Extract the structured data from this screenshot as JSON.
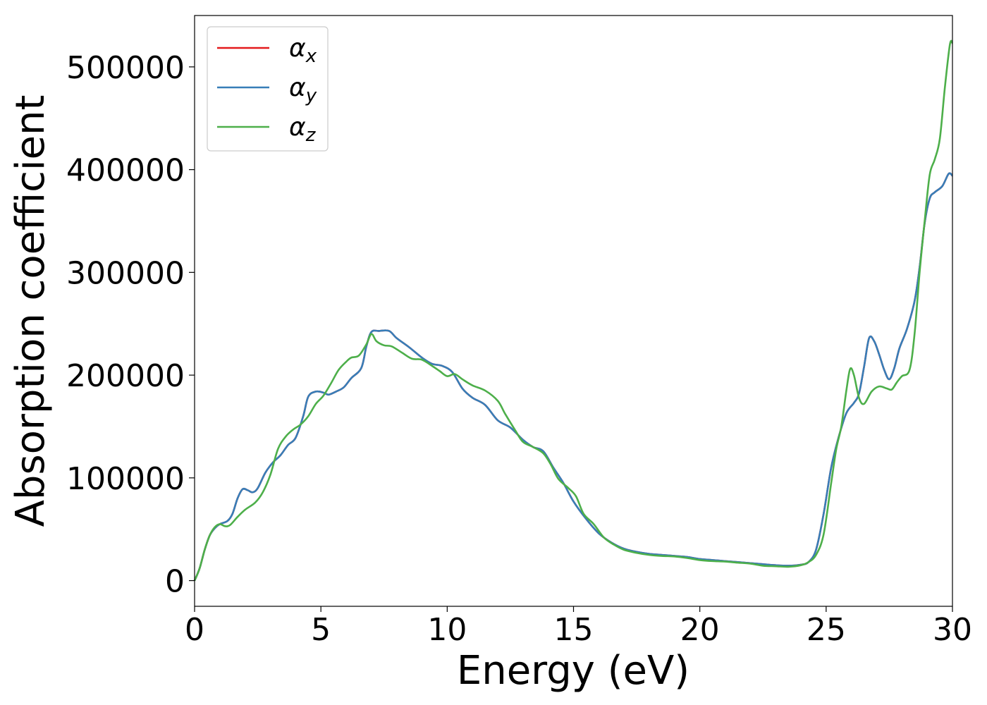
{
  "chart_data": {
    "type": "line",
    "title": "",
    "xlabel": "Energy (eV)",
    "ylabel": "Absorption coefficient",
    "xlim": [
      0,
      30
    ],
    "ylim": [
      -25000,
      550000
    ],
    "xticks": [
      0,
      5,
      10,
      15,
      20,
      25,
      30
    ],
    "xtick_labels": [
      "0",
      "5",
      "10",
      "15",
      "20",
      "25",
      "30"
    ],
    "yticks": [
      0,
      100000,
      200000,
      300000,
      400000,
      500000
    ],
    "ytick_labels": [
      "0",
      "100000",
      "200000",
      "300000",
      "400000",
      "500000"
    ],
    "grid": false,
    "legend_position": "top-left",
    "series": [
      {
        "name": "α",
        "subscript": "x",
        "color": "#e41a1c",
        "points": [
          [
            0,
            0
          ],
          [
            0.2,
            12000
          ],
          [
            0.4,
            30000
          ],
          [
            0.6,
            44000
          ],
          [
            0.8,
            51000
          ],
          [
            1.0,
            55000
          ],
          [
            1.3,
            58000
          ],
          [
            1.5,
            65000
          ],
          [
            1.7,
            80000
          ],
          [
            1.9,
            89000
          ],
          [
            2.1,
            88000
          ],
          [
            2.3,
            86000
          ],
          [
            2.5,
            90000
          ],
          [
            2.8,
            105000
          ],
          [
            3.1,
            115000
          ],
          [
            3.4,
            122000
          ],
          [
            3.7,
            132000
          ],
          [
            4.0,
            139000
          ],
          [
            4.3,
            160000
          ],
          [
            4.5,
            179000
          ],
          [
            4.8,
            184000
          ],
          [
            5.1,
            183000
          ],
          [
            5.3,
            181000
          ],
          [
            5.6,
            184000
          ],
          [
            5.9,
            188000
          ],
          [
            6.2,
            197000
          ],
          [
            6.6,
            207000
          ],
          [
            6.8,
            228000
          ],
          [
            7.0,
            242000
          ],
          [
            7.3,
            243000
          ],
          [
            7.7,
            243000
          ],
          [
            8.0,
            236000
          ],
          [
            8.5,
            227000
          ],
          [
            9.0,
            217000
          ],
          [
            9.4,
            211000
          ],
          [
            9.8,
            209000
          ],
          [
            10.2,
            203000
          ],
          [
            10.6,
            187000
          ],
          [
            11.0,
            178000
          ],
          [
            11.5,
            171000
          ],
          [
            12.0,
            156000
          ],
          [
            12.5,
            149000
          ],
          [
            13.0,
            137000
          ],
          [
            13.4,
            130000
          ],
          [
            13.8,
            126000
          ],
          [
            14.2,
            110000
          ],
          [
            14.6,
            95000
          ],
          [
            15.0,
            77000
          ],
          [
            15.5,
            60000
          ],
          [
            16.0,
            46000
          ],
          [
            16.5,
            37000
          ],
          [
            17.0,
            31000
          ],
          [
            17.5,
            28000
          ],
          [
            18.0,
            26000
          ],
          [
            18.5,
            25000
          ],
          [
            19.0,
            24000
          ],
          [
            19.5,
            23000
          ],
          [
            20.0,
            21000
          ],
          [
            20.5,
            20000
          ],
          [
            21.0,
            19000
          ],
          [
            21.5,
            18000
          ],
          [
            22.0,
            17000
          ],
          [
            22.5,
            16000
          ],
          [
            23.0,
            15000
          ],
          [
            23.5,
            14500
          ],
          [
            24.0,
            15500
          ],
          [
            24.3,
            18000
          ],
          [
            24.6,
            30000
          ],
          [
            24.9,
            65000
          ],
          [
            25.2,
            110000
          ],
          [
            25.5,
            140000
          ],
          [
            25.8,
            163000
          ],
          [
            26.1,
            173000
          ],
          [
            26.3,
            182000
          ],
          [
            26.5,
            208000
          ],
          [
            26.7,
            236000
          ],
          [
            26.9,
            233000
          ],
          [
            27.1,
            220000
          ],
          [
            27.3,
            205000
          ],
          [
            27.5,
            196000
          ],
          [
            27.7,
            207000
          ],
          [
            27.9,
            226000
          ],
          [
            28.2,
            245000
          ],
          [
            28.5,
            272000
          ],
          [
            28.7,
            305000
          ],
          [
            28.9,
            348000
          ],
          [
            29.1,
            372000
          ],
          [
            29.3,
            378000
          ],
          [
            29.6,
            384000
          ],
          [
            29.85,
            396000
          ],
          [
            30,
            394000
          ]
        ]
      },
      {
        "name": "α",
        "subscript": "y",
        "color": "#377eb8",
        "points": [
          [
            0,
            0
          ],
          [
            0.2,
            12000
          ],
          [
            0.4,
            30000
          ],
          [
            0.6,
            44000
          ],
          [
            0.8,
            51000
          ],
          [
            1.0,
            55000
          ],
          [
            1.3,
            58000
          ],
          [
            1.5,
            65000
          ],
          [
            1.7,
            80000
          ],
          [
            1.9,
            89000
          ],
          [
            2.1,
            88000
          ],
          [
            2.3,
            86000
          ],
          [
            2.5,
            90000
          ],
          [
            2.8,
            105000
          ],
          [
            3.1,
            115000
          ],
          [
            3.4,
            122000
          ],
          [
            3.7,
            132000
          ],
          [
            4.0,
            139000
          ],
          [
            4.3,
            160000
          ],
          [
            4.5,
            179000
          ],
          [
            4.8,
            184000
          ],
          [
            5.1,
            183000
          ],
          [
            5.3,
            181000
          ],
          [
            5.6,
            184000
          ],
          [
            5.9,
            188000
          ],
          [
            6.2,
            197000
          ],
          [
            6.6,
            207000
          ],
          [
            6.8,
            228000
          ],
          [
            7.0,
            242000
          ],
          [
            7.3,
            243000
          ],
          [
            7.7,
            243000
          ],
          [
            8.0,
            236000
          ],
          [
            8.5,
            227000
          ],
          [
            9.0,
            217000
          ],
          [
            9.4,
            211000
          ],
          [
            9.8,
            209000
          ],
          [
            10.2,
            203000
          ],
          [
            10.6,
            187000
          ],
          [
            11.0,
            178000
          ],
          [
            11.5,
            171000
          ],
          [
            12.0,
            156000
          ],
          [
            12.5,
            149000
          ],
          [
            13.0,
            137000
          ],
          [
            13.4,
            130000
          ],
          [
            13.8,
            126000
          ],
          [
            14.2,
            110000
          ],
          [
            14.6,
            95000
          ],
          [
            15.0,
            77000
          ],
          [
            15.5,
            60000
          ],
          [
            16.0,
            46000
          ],
          [
            16.5,
            37000
          ],
          [
            17.0,
            31000
          ],
          [
            17.5,
            28000
          ],
          [
            18.0,
            26000
          ],
          [
            18.5,
            25000
          ],
          [
            19.0,
            24000
          ],
          [
            19.5,
            23000
          ],
          [
            20.0,
            21000
          ],
          [
            20.5,
            20000
          ],
          [
            21.0,
            19000
          ],
          [
            21.5,
            18000
          ],
          [
            22.0,
            17000
          ],
          [
            22.5,
            16000
          ],
          [
            23.0,
            15000
          ],
          [
            23.5,
            14500
          ],
          [
            24.0,
            15500
          ],
          [
            24.3,
            18000
          ],
          [
            24.6,
            30000
          ],
          [
            24.9,
            65000
          ],
          [
            25.2,
            110000
          ],
          [
            25.5,
            140000
          ],
          [
            25.8,
            163000
          ],
          [
            26.1,
            173000
          ],
          [
            26.3,
            182000
          ],
          [
            26.5,
            208000
          ],
          [
            26.7,
            236000
          ],
          [
            26.9,
            233000
          ],
          [
            27.1,
            220000
          ],
          [
            27.3,
            205000
          ],
          [
            27.5,
            196000
          ],
          [
            27.7,
            207000
          ],
          [
            27.9,
            226000
          ],
          [
            28.2,
            245000
          ],
          [
            28.5,
            272000
          ],
          [
            28.7,
            305000
          ],
          [
            28.9,
            348000
          ],
          [
            29.1,
            372000
          ],
          [
            29.3,
            378000
          ],
          [
            29.6,
            384000
          ],
          [
            29.85,
            396000
          ],
          [
            30,
            394000
          ]
        ]
      },
      {
        "name": "α",
        "subscript": "z",
        "color": "#4daf4a",
        "points": [
          [
            0,
            0
          ],
          [
            0.2,
            12000
          ],
          [
            0.4,
            30000
          ],
          [
            0.6,
            44000
          ],
          [
            0.8,
            52000
          ],
          [
            1.0,
            55000
          ],
          [
            1.2,
            53000
          ],
          [
            1.4,
            54000
          ],
          [
            1.7,
            62000
          ],
          [
            2.0,
            69000
          ],
          [
            2.4,
            76000
          ],
          [
            2.7,
            86000
          ],
          [
            3.0,
            103000
          ],
          [
            3.3,
            128000
          ],
          [
            3.6,
            140000
          ],
          [
            3.9,
            147000
          ],
          [
            4.2,
            152000
          ],
          [
            4.5,
            160000
          ],
          [
            4.8,
            172000
          ],
          [
            5.1,
            180000
          ],
          [
            5.4,
            192000
          ],
          [
            5.7,
            205000
          ],
          [
            6.0,
            213000
          ],
          [
            6.2,
            217000
          ],
          [
            6.5,
            219000
          ],
          [
            6.8,
            230000
          ],
          [
            7.0,
            240000
          ],
          [
            7.2,
            233000
          ],
          [
            7.5,
            229000
          ],
          [
            7.8,
            228000
          ],
          [
            8.2,
            222000
          ],
          [
            8.6,
            216000
          ],
          [
            9.0,
            215000
          ],
          [
            9.4,
            209000
          ],
          [
            9.7,
            204000
          ],
          [
            10.0,
            199000
          ],
          [
            10.3,
            201000
          ],
          [
            10.6,
            196000
          ],
          [
            11.0,
            190000
          ],
          [
            11.5,
            185000
          ],
          [
            12.0,
            175000
          ],
          [
            12.3,
            162000
          ],
          [
            12.7,
            146000
          ],
          [
            13.0,
            135000
          ],
          [
            13.4,
            130000
          ],
          [
            13.8,
            124000
          ],
          [
            14.1,
            113000
          ],
          [
            14.4,
            99000
          ],
          [
            14.8,
            90000
          ],
          [
            15.1,
            82000
          ],
          [
            15.4,
            65000
          ],
          [
            15.8,
            55000
          ],
          [
            16.2,
            42000
          ],
          [
            16.6,
            35000
          ],
          [
            17.0,
            30000
          ],
          [
            17.5,
            27000
          ],
          [
            18.0,
            25000
          ],
          [
            18.5,
            24000
          ],
          [
            19.0,
            23500
          ],
          [
            19.5,
            22000
          ],
          [
            20.0,
            20000
          ],
          [
            20.5,
            19000
          ],
          [
            21.0,
            18500
          ],
          [
            21.5,
            17500
          ],
          [
            22.0,
            16500
          ],
          [
            22.5,
            14500
          ],
          [
            23.0,
            14000
          ],
          [
            23.5,
            13500
          ],
          [
            24.0,
            15000
          ],
          [
            24.3,
            18000
          ],
          [
            24.6,
            25000
          ],
          [
            24.9,
            45000
          ],
          [
            25.2,
            95000
          ],
          [
            25.4,
            128000
          ],
          [
            25.6,
            150000
          ],
          [
            25.8,
            185000
          ],
          [
            25.95,
            206000
          ],
          [
            26.1,
            200000
          ],
          [
            26.3,
            178000
          ],
          [
            26.5,
            172000
          ],
          [
            26.8,
            184000
          ],
          [
            27.1,
            189000
          ],
          [
            27.4,
            187000
          ],
          [
            27.6,
            186000
          ],
          [
            27.8,
            193000
          ],
          [
            28.0,
            199000
          ],
          [
            28.3,
            205000
          ],
          [
            28.5,
            240000
          ],
          [
            28.7,
            300000
          ],
          [
            28.9,
            350000
          ],
          [
            29.1,
            395000
          ],
          [
            29.3,
            410000
          ],
          [
            29.5,
            430000
          ],
          [
            29.7,
            480000
          ],
          [
            29.9,
            522000
          ],
          [
            30,
            523000
          ]
        ]
      }
    ]
  }
}
